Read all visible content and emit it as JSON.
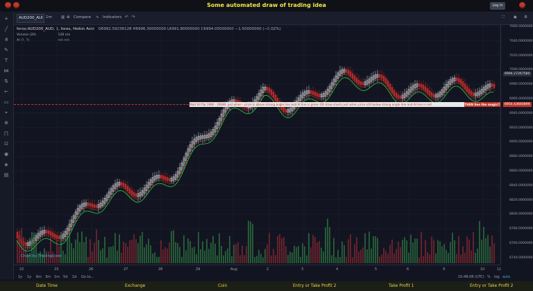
{
  "header": {
    "title": "Some automated draw of trading idea",
    "login_label": "Log in"
  },
  "toolbar": {
    "symbol": "AUD200_AUI",
    "interval": "1m",
    "compare": "Compare",
    "indicators": "Indicators"
  },
  "legend": {
    "main": "forex:AUD200_AUD, 1, forex, Heikin Ashi",
    "ohlc": "O6992.59236128  H6996.30000000  L6991.80000000  C6994.05000000  −1.50000000 (−0.02%)",
    "volume": "Volume (20)",
    "volume_values": "128  n/a",
    "ai": "AI (1, 1)",
    "ai_values": "n/a  n/a"
  },
  "annotation": {
    "text": "Wait till flip 1980  ·  DRAW: just when - price is above strong angle line and AI line is green   OR   draw shorts just when price still below strong angle line and AI line is red",
    "magic": "THEN See the magic!!",
    "level_label": "6954.43660899"
  },
  "price_axis": {
    "labels": [
      "7060.000000000",
      "7040.000000000",
      "7020.000000000",
      "7000.000000000",
      "6980.000000000",
      "6960.000000000",
      "6940.000000000",
      "6920.000000000",
      "6900.000000000",
      "6880.000000000",
      "6860.000000000",
      "6840.000000000",
      "6820.000000000",
      "6800.000000000",
      "6780.000000000",
      "6760.000000000",
      "6740.000000000"
    ],
    "current": "6994.27267580"
  },
  "time_axis": {
    "labels": [
      "22",
      "23",
      "26",
      "27",
      "28",
      "29",
      "Aug",
      "2",
      "3",
      "4",
      "5",
      "6",
      "9",
      "10",
      "11"
    ]
  },
  "range_bar": {
    "items": [
      "1y",
      "1y",
      "6m",
      "3m",
      "1m",
      "5d",
      "1d",
      "Go to..."
    ],
    "clock": "10:48:08 (UTC)",
    "pct": "%",
    "log": "log",
    "auto": "auto"
  },
  "bottom": {
    "items": [
      "Date Time",
      "Exchange",
      "Coin",
      "Entry or Take Profit 2",
      "Take Profit 1",
      "Entry or Take Profit 2"
    ]
  },
  "watermark": "Chart by TradingView",
  "colors": {
    "up": "#e6e6e6",
    "down": "#b52a2a",
    "green_line": "#2ecc40",
    "red_line": "#c0392b",
    "bg": "#121521",
    "accent": "#f2e84a"
  }
}
